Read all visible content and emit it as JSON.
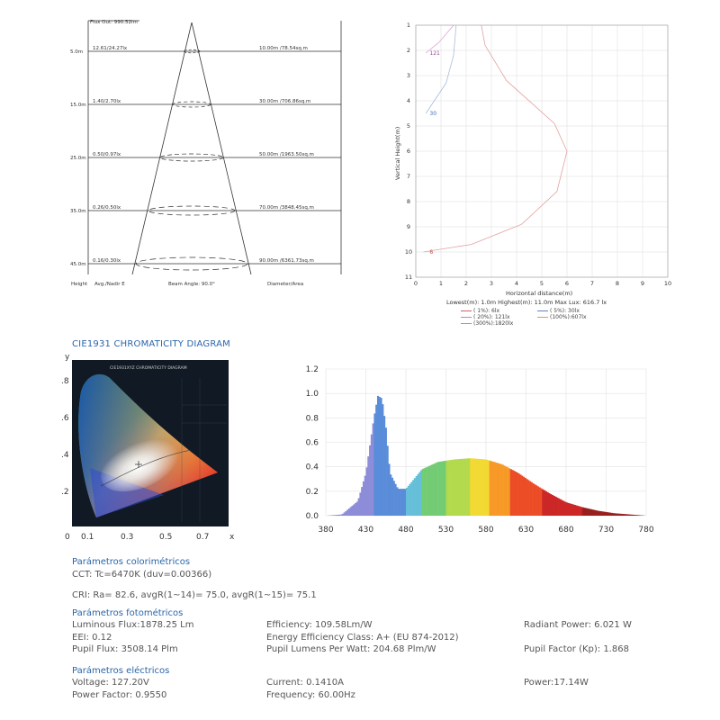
{
  "cone_diagram": {
    "flux_out": "Flux Out: 990.52lm",
    "rows": [
      {
        "height": "5.0m",
        "avg_nadir": "12.61/24.27lx",
        "diameter_area": "10.00m /78.54sq.m"
      },
      {
        "height": "15.0m",
        "avg_nadir": "1.40/2.70lx",
        "diameter_area": "30.00m /706.86sq.m"
      },
      {
        "height": "25.0m",
        "avg_nadir": "0.50/0.97lx",
        "diameter_area": "50.00m /1963.50sq.m"
      },
      {
        "height": "35.0m",
        "avg_nadir": "0.26/0.50lx",
        "diameter_area": "70.00m /3848.45sq.m"
      },
      {
        "height": "45.0m",
        "avg_nadir": "0.16/0.30lx",
        "diameter_area": "90.00m /6361.73sq.m"
      }
    ],
    "footer": {
      "height": "Height",
      "avg": "Avg./Nadir E",
      "beam": "Beam Angle: 90.0°",
      "diam": "Diameter/Area"
    }
  },
  "isolux_chart": {
    "ylabel": "Vertical Height(m)",
    "xlabel": "Horizontal distance(m)",
    "yticks": [
      "1",
      "2",
      "3",
      "4",
      "5",
      "6",
      "7",
      "8",
      "9",
      "10",
      "11"
    ],
    "xticks": [
      "0",
      "1",
      "2",
      "3",
      "4",
      "5",
      "6",
      "7",
      "8",
      "9",
      "10"
    ],
    "curve_labels": [
      {
        "text": "121",
        "y": 2.1,
        "color": "#a0479a"
      },
      {
        "text": "30",
        "y": 4.5,
        "color": "#3a6bb0"
      },
      {
        "text": "6",
        "y": 10.0,
        "color": "#c04848"
      }
    ],
    "stats": "Lowest(m): 1.0m    Highest(m): 11.0m    Max Lux: 616.7 lx",
    "legend": [
      {
        "text": "(  1%):   6lx",
        "color": "#d06060"
      },
      {
        "text": "(  5%):  30lx",
        "color": "#6080c0"
      },
      {
        "text": "( 20%): 121lx",
        "color": "#c080c0"
      },
      {
        "text": "(100%):607lx",
        "color": "#d0a060"
      },
      {
        "text": "(300%):1820lx",
        "color": "#e08080"
      }
    ]
  },
  "cie": {
    "title": "CIE1931 CHROMATICITY DIAGRAM",
    "inner_title": "CIE1931XYZ CHROMATICITY DIAGRAM",
    "y_axis_label": "y",
    "x_axis_label": "x",
    "y_ticks": [
      ".8",
      ".6",
      ".4",
      ".2"
    ],
    "x_ticks": [
      "0",
      "0.1",
      "0.3",
      "0.5",
      "0.7"
    ]
  },
  "chart_data": {
    "type": "area",
    "x": [
      380,
      400,
      420,
      430,
      440,
      445,
      450,
      455,
      460,
      470,
      480,
      490,
      500,
      520,
      540,
      560,
      580,
      600,
      620,
      640,
      660,
      680,
      700,
      720,
      740,
      760,
      780
    ],
    "values": [
      0.0,
      0.01,
      0.12,
      0.35,
      0.8,
      0.98,
      0.96,
      0.72,
      0.35,
      0.22,
      0.22,
      0.3,
      0.38,
      0.44,
      0.46,
      0.47,
      0.46,
      0.42,
      0.35,
      0.26,
      0.18,
      0.11,
      0.07,
      0.04,
      0.02,
      0.01,
      0.0
    ],
    "xticks": [
      380,
      430,
      480,
      530,
      580,
      630,
      680,
      730,
      780
    ],
    "yticks": [
      "0.0",
      "0.2",
      "0.4",
      "0.6",
      "0.8",
      "1.0",
      "1.2"
    ],
    "xlim": [
      380,
      780
    ],
    "ylim": [
      0,
      1.2
    ],
    "grid": true
  },
  "colorimetric": {
    "title": "Parámetros colorimétricos",
    "cct": "CCT: Tc=6470K (duv=0.00366)",
    "cri": "CRI: Ra= 82.6, avgR(1~14)= 75.0, avgR(1~15)= 75.1"
  },
  "photometric": {
    "title": "Parámetros fotométricos",
    "luminous_flux": "Luminous Flux:1878.25 Lm",
    "efficiency": "Efficiency: 109.58Lm/W",
    "radiant_power": "Radiant Power: 6.021 W",
    "eei": "EEI: 0.12",
    "energy_class": "Energy Efficiency Class: A+ (EU 874-2012)",
    "pupil_flux": "Pupil Flux: 3508.14 Plm",
    "pupil_lumens": "Pupil Lumens Per Watt: 204.68 Plm/W",
    "pupil_factor": "Pupil Factor (Kp): 1.868"
  },
  "electrical": {
    "title": "Parámetros eléctricos",
    "voltage": "Voltage: 127.20V",
    "current": "Current: 0.1410A",
    "power": "Power:17.14W",
    "power_factor": "Power Factor: 0.9550",
    "frequency": "Frequency: 60.00Hz"
  }
}
